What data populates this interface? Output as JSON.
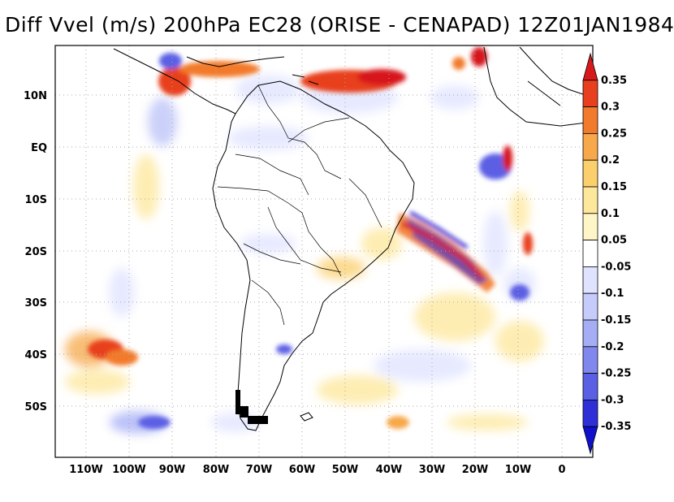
{
  "title": "Diff Vvel (m/s) 200hPa EC28 (ORISE - CENAPAD) 12Z01JAN1984",
  "map": {
    "lat_ticks": [
      "10N",
      "EQ",
      "10S",
      "20S",
      "30S",
      "40S",
      "50S"
    ],
    "lon_ticks": [
      "110W",
      "100W",
      "90W",
      "80W",
      "70W",
      "60W",
      "50W",
      "40W",
      "30W",
      "20W",
      "10W",
      "0"
    ],
    "lon_range": [
      -117,
      5
    ],
    "lat_range": [
      -59,
      19
    ],
    "grid": true,
    "projection": "lat-lon"
  },
  "colorbar": {
    "labels": [
      "0.35",
      "0.3",
      "0.25",
      "0.2",
      "0.15",
      "0.1",
      "0.05",
      "-0.05",
      "-0.1",
      "-0.15",
      "-0.2",
      "-0.25",
      "-0.3",
      "-0.35"
    ],
    "colors": [
      "#d7191c",
      "#e8401e",
      "#f27a2c",
      "#f7a84a",
      "#fbcf6c",
      "#fde79a",
      "#fff6c8",
      "#ffffff",
      "#dfe3ff",
      "#c5cbfb",
      "#a5adf5",
      "#8088ee",
      "#5b5fe4",
      "#2f2fd8",
      "#1010cc"
    ]
  }
}
